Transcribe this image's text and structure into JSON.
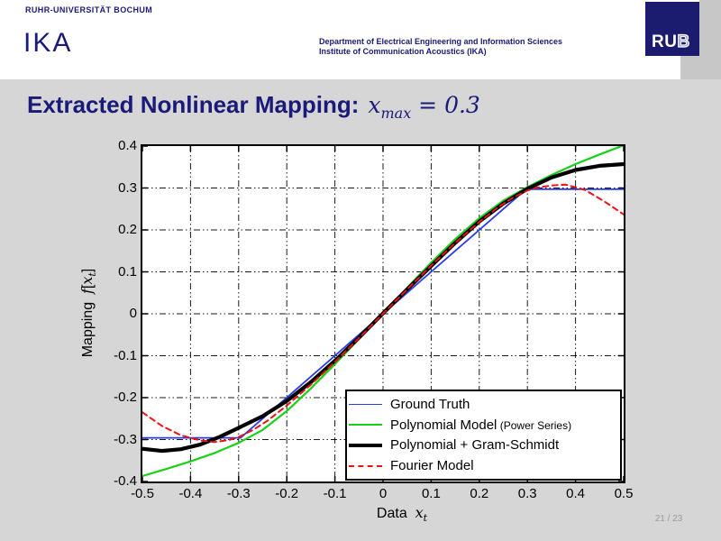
{
  "header": {
    "university": "RUHR-UNIVERSITÄT BOCHUM",
    "institute_short": "IKA",
    "department_line1": "Department of Electrical Engineering and Information Sciences",
    "department_line2": "Institute of Communication Acoustics (IKA)",
    "logo_ru": "RU",
    "logo_b": "B",
    "navy_color": "#1a1a78",
    "logo_color": "#1b1b6f"
  },
  "title": {
    "text": "Extracted Nonlinear Mapping:",
    "math_var": "x",
    "math_sub": "max",
    "math_rest": " = 0.3"
  },
  "footer": {
    "page": "21 / 23"
  },
  "chart_data": {
    "type": "line",
    "title": "",
    "xlabel_word": "Data",
    "xlabel_var": "x",
    "xlabel_sub": "t",
    "ylabel_word": "Mapping",
    "ylabel_f": "f",
    "ylabel_open": "[",
    "ylabel_var": "x",
    "ylabel_sub": "t",
    "ylabel_close": "]",
    "xlim": [
      -0.5,
      0.5
    ],
    "ylim": [
      -0.4,
      0.4
    ],
    "grid": true,
    "grid_style": "dash-dot",
    "legend_position": "lower-right",
    "xticks": {
      "values": [
        -0.5,
        -0.4,
        -0.3,
        -0.2,
        -0.1,
        0,
        0.1,
        0.2,
        0.3,
        0.4,
        0.5
      ],
      "labels": [
        "-0.5",
        "-0.4",
        "-0.3",
        "-0.2",
        "-0.1",
        "0",
        "0.1",
        "0.2",
        "0.3",
        "0.4",
        "0.5"
      ]
    },
    "yticks": {
      "values": [
        0.4,
        0.3,
        0.2,
        0.1,
        0,
        -0.1,
        -0.2,
        -0.3,
        -0.4
      ],
      "labels": [
        "0.4",
        "0.3",
        "0.2",
        "0.1",
        "0",
        "-0.1",
        "-0.2",
        "-0.3",
        "-0.4"
      ]
    },
    "series": [
      {
        "name": "Ground Truth",
        "color": "#2a3bee",
        "line_width": 1.8,
        "line_style": "solid",
        "points": [
          [
            -0.5,
            -0.296
          ],
          [
            -0.296,
            -0.296
          ],
          [
            0.297,
            0.297
          ],
          [
            0.5,
            0.297
          ]
        ]
      },
      {
        "name": "Polynomial Model",
        "name_note": "(Power Series)",
        "color": "#17d117",
        "line_width": 2.2,
        "line_style": "solid",
        "points": [
          [
            -0.5,
            -0.387
          ],
          [
            -0.45,
            -0.37
          ],
          [
            -0.4,
            -0.352
          ],
          [
            -0.35,
            -0.332
          ],
          [
            -0.3,
            -0.308
          ],
          [
            -0.25,
            -0.277
          ],
          [
            -0.2,
            -0.232
          ],
          [
            -0.15,
            -0.178
          ],
          [
            -0.1,
            -0.12
          ],
          [
            -0.05,
            -0.06
          ],
          [
            0,
            0
          ],
          [
            0.05,
            0.062
          ],
          [
            0.1,
            0.122
          ],
          [
            0.15,
            0.178
          ],
          [
            0.2,
            0.228
          ],
          [
            0.25,
            0.27
          ],
          [
            0.3,
            0.302
          ],
          [
            0.35,
            0.331
          ],
          [
            0.4,
            0.357
          ],
          [
            0.45,
            0.38
          ],
          [
            0.5,
            0.402
          ]
        ]
      },
      {
        "name": "Polynomial + Gram-Schmidt",
        "color": "#000000",
        "line_width": 4.2,
        "line_style": "solid",
        "points": [
          [
            -0.5,
            -0.322
          ],
          [
            -0.46,
            -0.327
          ],
          [
            -0.42,
            -0.323
          ],
          [
            -0.38,
            -0.312
          ],
          [
            -0.34,
            -0.294
          ],
          [
            -0.3,
            -0.272
          ],
          [
            -0.25,
            -0.244
          ],
          [
            -0.2,
            -0.208
          ],
          [
            -0.15,
            -0.163
          ],
          [
            -0.1,
            -0.112
          ],
          [
            -0.05,
            -0.057
          ],
          [
            0,
            0.001
          ],
          [
            0.05,
            0.058
          ],
          [
            0.1,
            0.114
          ],
          [
            0.15,
            0.169
          ],
          [
            0.2,
            0.22
          ],
          [
            0.25,
            0.263
          ],
          [
            0.3,
            0.298
          ],
          [
            0.35,
            0.325
          ],
          [
            0.4,
            0.343
          ],
          [
            0.45,
            0.353
          ],
          [
            0.5,
            0.357
          ]
        ]
      },
      {
        "name": "Fourier Model",
        "color": "#ee1111",
        "line_width": 2,
        "line_style": "dashed",
        "points": [
          [
            -0.5,
            -0.235
          ],
          [
            -0.46,
            -0.267
          ],
          [
            -0.42,
            -0.29
          ],
          [
            -0.38,
            -0.302
          ],
          [
            -0.35,
            -0.306
          ],
          [
            -0.32,
            -0.301
          ],
          [
            -0.3,
            -0.294
          ],
          [
            -0.27,
            -0.277
          ],
          [
            -0.24,
            -0.255
          ],
          [
            -0.2,
            -0.219
          ],
          [
            -0.15,
            -0.169
          ],
          [
            -0.1,
            -0.115
          ],
          [
            -0.05,
            -0.058
          ],
          [
            0,
            0
          ],
          [
            0.05,
            0.058
          ],
          [
            0.1,
            0.115
          ],
          [
            0.15,
            0.169
          ],
          [
            0.2,
            0.219
          ],
          [
            0.24,
            0.255
          ],
          [
            0.27,
            0.277
          ],
          [
            0.3,
            0.294
          ],
          [
            0.32,
            0.301
          ],
          [
            0.35,
            0.306
          ],
          [
            0.38,
            0.308
          ],
          [
            0.42,
            0.295
          ],
          [
            0.46,
            0.268
          ],
          [
            0.5,
            0.237
          ]
        ]
      }
    ]
  }
}
